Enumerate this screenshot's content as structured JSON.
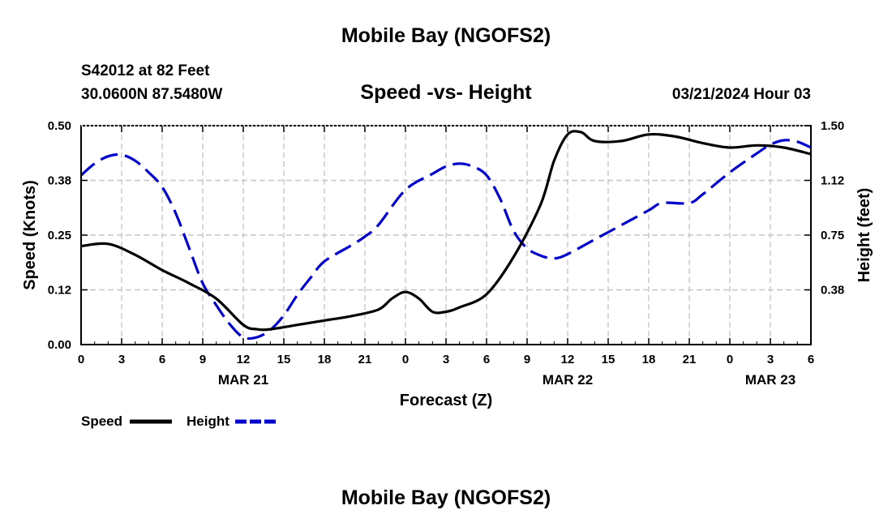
{
  "header": {
    "title": "Mobile Bay (NGOFS2)",
    "station": "S42012 at 82 Feet",
    "coords": "30.0600N  87.5480W",
    "run_time": "03/21/2024 Hour 03"
  },
  "footer": {
    "title": "Mobile Bay (NGOFS2)"
  },
  "chart_data": {
    "type": "line",
    "title": "Speed -vs- Height",
    "xlabel": "Forecast (Z)",
    "ylabel": "Speed (Knots)",
    "y2label": "Height (feet)",
    "x_range_hours": [
      0,
      54
    ],
    "x_ticks": [
      {
        "h": 0,
        "label": "0"
      },
      {
        "h": 3,
        "label": "3"
      },
      {
        "h": 6,
        "label": "6"
      },
      {
        "h": 9,
        "label": "9"
      },
      {
        "h": 12,
        "label": "12"
      },
      {
        "h": 15,
        "label": "15"
      },
      {
        "h": 18,
        "label": "18"
      },
      {
        "h": 21,
        "label": "21"
      },
      {
        "h": 24,
        "label": "0"
      },
      {
        "h": 27,
        "label": "3"
      },
      {
        "h": 30,
        "label": "6"
      },
      {
        "h": 33,
        "label": "9"
      },
      {
        "h": 36,
        "label": "12"
      },
      {
        "h": 39,
        "label": "15"
      },
      {
        "h": 42,
        "label": "18"
      },
      {
        "h": 45,
        "label": "21"
      },
      {
        "h": 48,
        "label": "0"
      },
      {
        "h": 51,
        "label": "3"
      },
      {
        "h": 54,
        "label": "6"
      }
    ],
    "date_labels": [
      {
        "h": 12,
        "label": "MAR 21"
      },
      {
        "h": 36,
        "label": "MAR 22"
      },
      {
        "h": 51,
        "label": "MAR 23"
      }
    ],
    "ylim": [
      0,
      0.5
    ],
    "y_ticks": [
      {
        "v": 0,
        "label": "0.00"
      },
      {
        "v": 0.125,
        "label": "0.12"
      },
      {
        "v": 0.25,
        "label": "0.25"
      },
      {
        "v": 0.375,
        "label": "0.38"
      },
      {
        "v": 0.5,
        "label": "0.50"
      }
    ],
    "y2lim": [
      0,
      1.5
    ],
    "y2_ticks": [
      {
        "v": 0.375,
        "label": "0.38"
      },
      {
        "v": 0.75,
        "label": "0.75"
      },
      {
        "v": 1.125,
        "label": "1.12"
      },
      {
        "v": 1.5,
        "label": "1.50"
      }
    ],
    "grid": true,
    "legend_position": "bottom-left",
    "series": [
      {
        "name": "Speed",
        "axis": "left",
        "color": "#000000",
        "style": "solid",
        "x": [
          0,
          2,
          4,
          6,
          8,
          10,
          12,
          13,
          14,
          16,
          18,
          20,
          22,
          23,
          24,
          25,
          26,
          27,
          28,
          30,
          32,
          34,
          35,
          36,
          37,
          38,
          40,
          42,
          44,
          46,
          48,
          50,
          52,
          54
        ],
        "y": [
          0.225,
          0.23,
          0.205,
          0.17,
          0.14,
          0.105,
          0.045,
          0.035,
          0.035,
          0.045,
          0.055,
          0.065,
          0.08,
          0.105,
          0.12,
          0.105,
          0.075,
          0.075,
          0.085,
          0.115,
          0.2,
          0.32,
          0.42,
          0.48,
          0.485,
          0.465,
          0.465,
          0.48,
          0.475,
          0.46,
          0.45,
          0.455,
          0.45,
          0.435
        ]
      },
      {
        "name": "Height",
        "axis": "right",
        "color": "#0000cc",
        "style": "dashed",
        "x": [
          0,
          1,
          2,
          3,
          4,
          5,
          6,
          7,
          8,
          9,
          10,
          11,
          12,
          13,
          14,
          15,
          16,
          17,
          18,
          20,
          21,
          22,
          24,
          26,
          27,
          28,
          29,
          30,
          31,
          32,
          33,
          34,
          35,
          36,
          38,
          40,
          42,
          43,
          45,
          46,
          48,
          50,
          51,
          52,
          53,
          54
        ],
        "y": [
          1.16,
          1.24,
          1.29,
          1.3,
          1.26,
          1.18,
          1.08,
          0.9,
          0.66,
          0.42,
          0.27,
          0.14,
          0.05,
          0.05,
          0.1,
          0.2,
          0.34,
          0.46,
          0.57,
          0.68,
          0.74,
          0.82,
          1.06,
          1.17,
          1.22,
          1.24,
          1.22,
          1.16,
          1.0,
          0.78,
          0.66,
          0.61,
          0.59,
          0.62,
          0.72,
          0.82,
          0.92,
          0.97,
          0.97,
          1.03,
          1.18,
          1.31,
          1.37,
          1.4,
          1.39,
          1.35
        ]
      }
    ]
  }
}
